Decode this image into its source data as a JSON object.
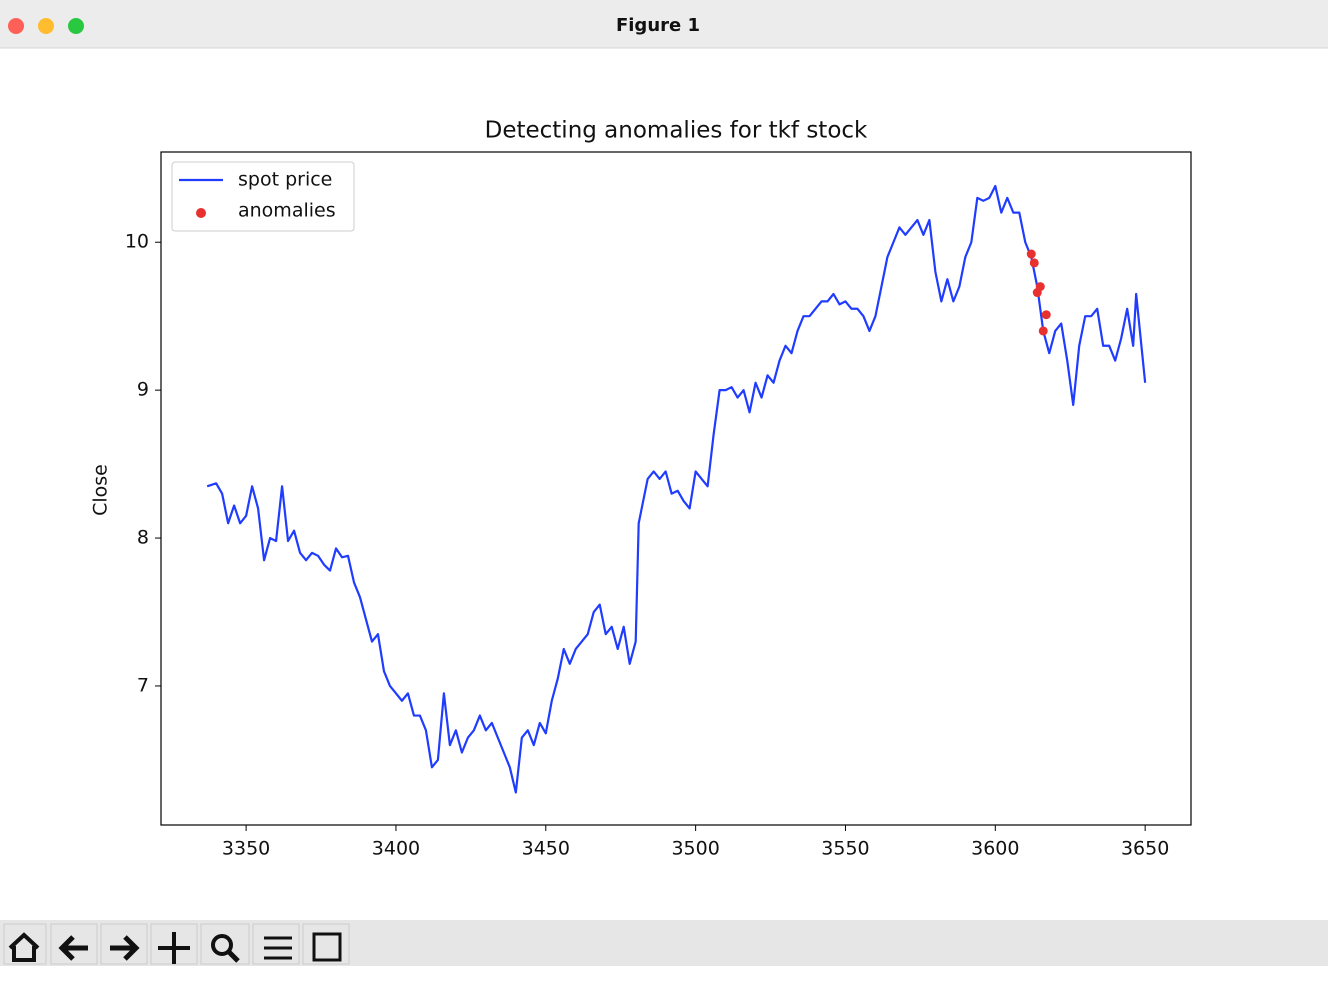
{
  "window": {
    "title": "Figure 1"
  },
  "chart_data": {
    "type": "line",
    "title": "Detecting anomalies for tkf stock",
    "y_label": "Close",
    "xlim": [
      3321.6,
      3665.3
    ],
    "ylim": [
      6.06,
      10.61
    ],
    "xticks": [
      3350,
      3400,
      3450,
      3500,
      3550,
      3600,
      3650
    ],
    "yticks": [
      7,
      8,
      9,
      10
    ],
    "grid": false,
    "legend": "upper left",
    "series": [
      {
        "name": "spot price",
        "type": "line",
        "color": "#1f3cff",
        "x": [
          3337,
          3340,
          3342,
          3344,
          3346,
          3348,
          3350,
          3352,
          3354,
          3356,
          3358,
          3360,
          3362,
          3364,
          3366,
          3368,
          3370,
          3372,
          3374,
          3376,
          3378,
          3380,
          3382,
          3384,
          3386,
          3388,
          3390,
          3392,
          3394,
          3396,
          3398,
          3400,
          3402,
          3404,
          3406,
          3408,
          3410,
          3412,
          3414,
          3416,
          3418,
          3420,
          3422,
          3424,
          3426,
          3428,
          3430,
          3432,
          3434,
          3436,
          3438,
          3440,
          3442,
          3444,
          3446,
          3448,
          3450,
          3452,
          3454,
          3456,
          3458,
          3460,
          3462,
          3464,
          3466,
          3468,
          3470,
          3472,
          3474,
          3476,
          3478,
          3480,
          3481,
          3484,
          3486,
          3488,
          3490,
          3492,
          3494,
          3496,
          3498,
          3500,
          3502,
          3504,
          3506,
          3508,
          3510,
          3512,
          3514,
          3516,
          3518,
          3520,
          3522,
          3524,
          3526,
          3528,
          3530,
          3532,
          3534,
          3536,
          3538,
          3540,
          3542,
          3544,
          3546,
          3548,
          3550,
          3552,
          3554,
          3556,
          3558,
          3560,
          3562,
          3564,
          3566,
          3568,
          3570,
          3572,
          3574,
          3576,
          3578,
          3580,
          3582,
          3584,
          3586,
          3588,
          3590,
          3592,
          3594,
          3596,
          3598,
          3600,
          3602,
          3604,
          3606,
          3608,
          3610,
          3612,
          3614,
          3616,
          3618,
          3620,
          3622,
          3624,
          3626,
          3628,
          3630,
          3632,
          3634,
          3636,
          3638,
          3640,
          3642,
          3644,
          3646,
          3647,
          3649,
          3650
        ],
        "values": [
          8.35,
          8.37,
          8.3,
          8.1,
          8.22,
          8.1,
          8.15,
          8.35,
          8.2,
          7.85,
          8.0,
          7.98,
          8.35,
          7.98,
          8.05,
          7.9,
          7.85,
          7.9,
          7.88,
          7.82,
          7.78,
          7.93,
          7.87,
          7.88,
          7.7,
          7.6,
          7.45,
          7.3,
          7.35,
          7.1,
          7.0,
          6.95,
          6.9,
          6.95,
          6.8,
          6.8,
          6.7,
          6.45,
          6.5,
          6.95,
          6.6,
          6.7,
          6.55,
          6.65,
          6.7,
          6.8,
          6.7,
          6.75,
          6.65,
          6.55,
          6.45,
          6.28,
          6.65,
          6.7,
          6.6,
          6.75,
          6.68,
          6.9,
          7.05,
          7.25,
          7.15,
          7.25,
          7.3,
          7.35,
          7.5,
          7.55,
          7.35,
          7.4,
          7.25,
          7.4,
          7.15,
          7.3,
          8.1,
          8.4,
          8.45,
          8.4,
          8.45,
          8.3,
          8.32,
          8.25,
          8.2,
          8.45,
          8.4,
          8.35,
          8.7,
          9.0,
          9.0,
          9.02,
          8.95,
          9.0,
          8.85,
          9.05,
          8.95,
          9.1,
          9.05,
          9.2,
          9.3,
          9.25,
          9.4,
          9.5,
          9.5,
          9.55,
          9.6,
          9.6,
          9.65,
          9.58,
          9.6,
          9.55,
          9.55,
          9.5,
          9.4,
          9.5,
          9.7,
          9.9,
          10.0,
          10.1,
          10.05,
          10.1,
          10.15,
          10.05,
          10.15,
          9.8,
          9.6,
          9.75,
          9.6,
          9.7,
          9.9,
          10.0,
          10.3,
          10.28,
          10.3,
          10.38,
          10.2,
          10.3,
          10.2,
          10.2,
          10.0,
          9.9,
          9.7,
          9.4,
          9.25,
          9.4,
          9.45,
          9.2,
          8.9,
          9.3,
          9.5,
          9.5,
          9.55,
          9.3,
          9.3,
          9.2,
          9.35,
          9.55,
          9.3,
          9.65,
          9.25,
          9.05
        ]
      },
      {
        "name": "anomalies",
        "type": "scatter",
        "color": "#e8302f",
        "x": [
          3612,
          3613,
          3614,
          3615,
          3616,
          3617
        ],
        "values": [
          9.92,
          9.86,
          9.66,
          9.7,
          9.4,
          9.51
        ]
      }
    ]
  }
}
